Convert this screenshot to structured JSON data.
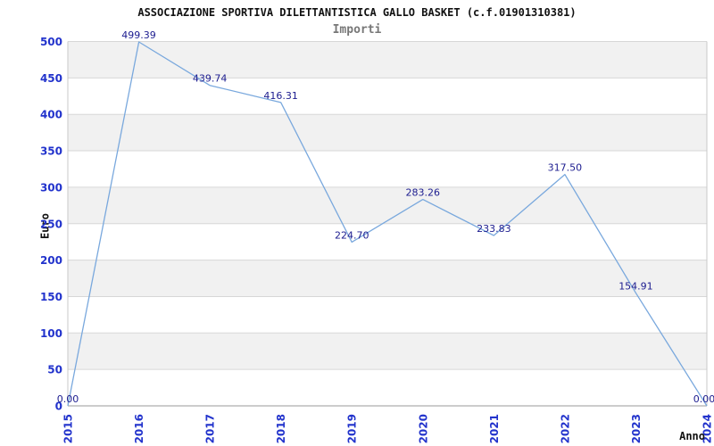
{
  "window": {
    "title": "ASSOCIAZIONE SPORTIVA DILETTANTISTICA GALLO BASKET (c.f.01901310381)",
    "subtitle": "Importi"
  },
  "chart_data": {
    "type": "line",
    "title": "ASSOCIAZIONE SPORTIVA DILETTANTISTICA GALLO BASKET (c.f.01901310381)",
    "subtitle": "Importi",
    "xlabel": "Anno",
    "ylabel": "Euro",
    "categories": [
      "2015",
      "2016",
      "2017",
      "2018",
      "2019",
      "2020",
      "2021",
      "2022",
      "2023",
      "2024"
    ],
    "values": [
      0.0,
      499.39,
      439.74,
      416.31,
      224.7,
      283.26,
      233.83,
      317.5,
      154.91,
      0.0
    ],
    "point_labels": [
      "0.00",
      "499.39",
      "439.74",
      "416.31",
      "224.70",
      "283.26",
      "233.83",
      "317.50",
      "154.91",
      "0.00"
    ],
    "ylim": [
      0,
      500
    ],
    "yticks": [
      0,
      50,
      100,
      150,
      200,
      250,
      300,
      350,
      400,
      450,
      500
    ],
    "grid": "horizontal gridlines with alternating shaded bands",
    "legend": "none",
    "colors": {
      "line": "#79a8dd",
      "tick_label": "#2233cc",
      "point_label": "#1c1c8f",
      "band_gray": "#f1f1f1",
      "band_white": "#ffffff",
      "gridline": "#d7d7d7",
      "plot_border": "#c9c9c9",
      "axis_line": "#9a9a9a",
      "title": "#111111",
      "subtitle": "#777777"
    }
  }
}
